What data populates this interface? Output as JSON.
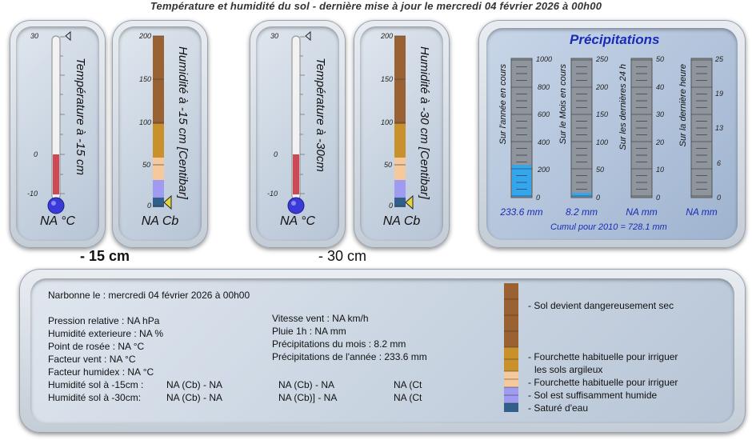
{
  "header": {
    "title": "Température et humidité du sol   -   dernière mise à jour le mercredi 04 février 2026 à 00h00"
  },
  "colors": {
    "thermo_red": "#cc4a55",
    "thermo_blue": "#3a3ad8",
    "hum_brown": "#9a6233",
    "hum_gold": "#c8912c",
    "hum_peach": "#f6c99c",
    "hum_violet": "#9f9bf0",
    "hum_navy": "#2f5f8a",
    "precip_blue": "#1a2bb8"
  },
  "gauges": [
    {
      "kind": "temp",
      "label": "Température à -15 cm",
      "value_text": "NA °C",
      "ticks": [
        "30",
        "0",
        "-10"
      ]
    },
    {
      "kind": "hum",
      "label": "Humidité à -15 cm [Centibar]",
      "value_text": "NA Cb",
      "ticks": [
        "200",
        "150",
        "100",
        "50",
        "0"
      ]
    },
    {
      "kind": "temp",
      "label": "Température à -30cm",
      "value_text": "NA °C",
      "ticks": [
        "30",
        "0",
        "-10"
      ]
    },
    {
      "kind": "hum",
      "label": "Humidité à -30 cm [Centibar]",
      "value_text": "NA Cb",
      "ticks": [
        "200",
        "150",
        "100",
        "50",
        "0"
      ]
    }
  ],
  "depth_labels": [
    "- 15 cm",
    "- 30 cm"
  ],
  "precipitations": {
    "title": "Précipitations",
    "gauges": [
      {
        "label": "Sur l'année en cours",
        "ticks": [
          "1000",
          "800",
          "600",
          "400",
          "200",
          "0"
        ],
        "value_text": "233.6 mm",
        "fill_fraction": 0.234
      },
      {
        "label": "Sur le Mois en cours",
        "ticks": [
          "250",
          "200",
          "150",
          "100",
          "50",
          "0"
        ],
        "value_text": "8.2 mm",
        "fill_fraction": 0.033
      },
      {
        "label": "Sur les dernières 24 h",
        "ticks": [
          "50",
          "40",
          "30",
          "20",
          "10",
          "0"
        ],
        "value_text": "NA mm",
        "fill_fraction": 0
      },
      {
        "label": "Sur la dernière heure",
        "ticks": [
          "25",
          "19",
          "13",
          "6",
          "0"
        ],
        "value_text": "NA mm",
        "fill_fraction": 0
      }
    ],
    "cumul": "Cumul pour 2010 = 728.1 mm"
  },
  "info": {
    "location_line": "Narbonne le : mercredi 04 février 2026 à 00h00",
    "left": [
      "Pression relative : NA hPa",
      "Humidité exterieure : NA %",
      "Point de rosée : NA °C",
      "Facteur vent : NA °C",
      "Facteur humidex : NA °C"
    ],
    "right": [
      "Vitesse vent : NA km/h",
      "Pluie 1h : NA mm",
      "Précipitations du mois : 8.2 mm",
      "Précipitations de l'année : 233.6 mm"
    ],
    "soil_rows": [
      {
        "label": "Humidité sol à -15cm :",
        "c1": "NA (Cb) - NA",
        "c2": "NA (Cb) - NA",
        "c3": "NA (Ct"
      },
      {
        "label": "Humidité sol à -30cm:",
        "c1": "NA (Cb) - NA",
        "c2": "NA (Cb)] - NA",
        "c3": "NA (Ct"
      }
    ]
  },
  "legend": [
    "- Sol devient dangereusement sec",
    "- Fourchette habituelle pour irriguer",
    "les sols argileux",
    "- Fourchette habituelle pour irriguer",
    "- Sol est suffisamment humide",
    "- Saturé d'eau"
  ]
}
